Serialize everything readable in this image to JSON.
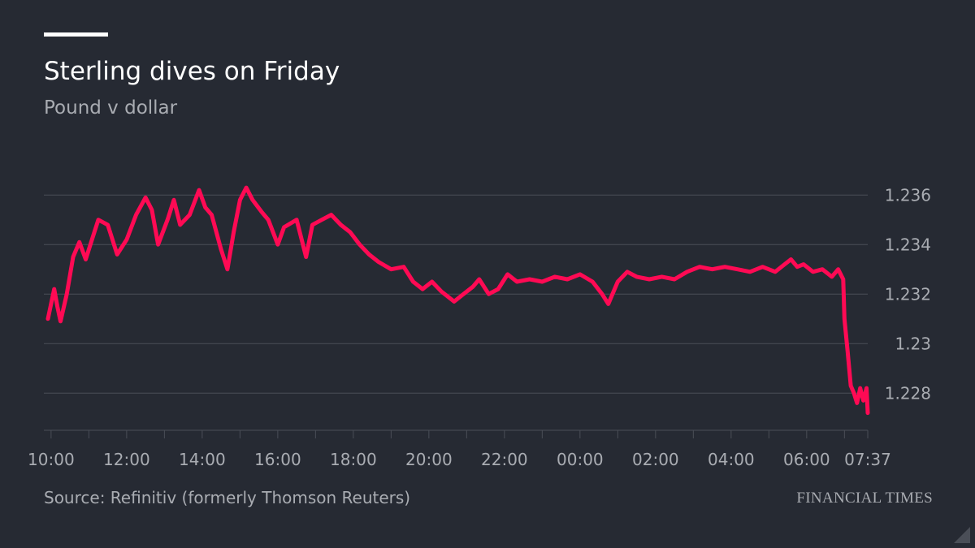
{
  "header": {
    "title": "Sterling dives on Friday",
    "subtitle": "Pound v dollar"
  },
  "footer": {
    "source": "Source: Refinitiv (formerly Thomson Reuters)",
    "brand": "FINANCIAL TIMES"
  },
  "colors": {
    "background": "#262a33",
    "line": "#ff0a54",
    "grid": "#4a4e57",
    "text_muted": "#a9acb2"
  },
  "chart_data": {
    "type": "line",
    "title": "Sterling dives on Friday",
    "subtitle": "Pound v dollar",
    "ylim": [
      1.2265,
      1.2365
    ],
    "y_ticks": [
      {
        "value": 1.236,
        "label": "1.236"
      },
      {
        "value": 1.234,
        "label": "1.234"
      },
      {
        "value": 1.232,
        "label": "1.232"
      },
      {
        "value": 1.23,
        "label": "1.23"
      },
      {
        "value": 1.228,
        "label": "1.228"
      }
    ],
    "x_ticks": [
      {
        "label": "10:00",
        "value": "10:00"
      },
      {
        "label": "12:00",
        "value": "12:00"
      },
      {
        "label": "14:00",
        "value": "14:00"
      },
      {
        "label": "16:00",
        "value": "16:00"
      },
      {
        "label": "18:00",
        "value": "18:00"
      },
      {
        "label": "20:00",
        "value": "20:00"
      },
      {
        "label": "22:00",
        "value": "22:00"
      },
      {
        "label": "00:00",
        "value": "00:00"
      },
      {
        "label": "02:00",
        "value": "02:00"
      },
      {
        "label": "04:00",
        "value": "04:00"
      },
      {
        "label": "06:00",
        "value": "06:00"
      },
      {
        "label": "07:37",
        "value": "07:37"
      }
    ],
    "grid": true,
    "series": [
      {
        "points": [
          [
            "09:55",
            1.231
          ],
          [
            "10:05",
            1.2322
          ],
          [
            "10:10",
            1.2315
          ],
          [
            "10:15",
            1.2309
          ],
          [
            "10:25",
            1.232
          ],
          [
            "10:35",
            1.2335
          ],
          [
            "10:45",
            1.2341
          ],
          [
            "10:55",
            1.2334
          ],
          [
            "11:05",
            1.2342
          ],
          [
            "11:15",
            1.235
          ],
          [
            "11:30",
            1.2348
          ],
          [
            "11:45",
            1.2336
          ],
          [
            "12:00",
            1.2342
          ],
          [
            "12:15",
            1.2352
          ],
          [
            "12:30",
            1.2359
          ],
          [
            "12:40",
            1.2354
          ],
          [
            "12:50",
            1.234
          ],
          [
            "13:05",
            1.235
          ],
          [
            "13:15",
            1.2358
          ],
          [
            "13:25",
            1.2348
          ],
          [
            "13:40",
            1.2352
          ],
          [
            "13:55",
            1.2362
          ],
          [
            "14:05",
            1.2355
          ],
          [
            "14:15",
            1.2352
          ],
          [
            "14:30",
            1.2338
          ],
          [
            "14:40",
            1.233
          ],
          [
            "14:50",
            1.2345
          ],
          [
            "15:00",
            1.2358
          ],
          [
            "15:10",
            1.2363
          ],
          [
            "15:20",
            1.2358
          ],
          [
            "15:35",
            1.2353
          ],
          [
            "15:45",
            1.235
          ],
          [
            "16:00",
            1.234
          ],
          [
            "16:10",
            1.2347
          ],
          [
            "16:30",
            1.235
          ],
          [
            "16:45",
            1.2335
          ],
          [
            "16:55",
            1.2348
          ],
          [
            "17:10",
            1.235
          ],
          [
            "17:25",
            1.2352
          ],
          [
            "17:40",
            1.2348
          ],
          [
            "17:55",
            1.2345
          ],
          [
            "18:10",
            1.234
          ],
          [
            "18:25",
            1.2336
          ],
          [
            "18:40",
            1.2333
          ],
          [
            "19:00",
            1.233
          ],
          [
            "19:20",
            1.2331
          ],
          [
            "19:35",
            1.2325
          ],
          [
            "19:50",
            1.2322
          ],
          [
            "20:05",
            1.2325
          ],
          [
            "20:20",
            1.2321
          ],
          [
            "20:40",
            1.2317
          ],
          [
            "20:55",
            1.232
          ],
          [
            "21:10",
            1.2323
          ],
          [
            "21:20",
            1.2326
          ],
          [
            "21:35",
            1.232
          ],
          [
            "21:50",
            1.2322
          ],
          [
            "22:05",
            1.2328
          ],
          [
            "22:20",
            1.2325
          ],
          [
            "22:40",
            1.2326
          ],
          [
            "23:00",
            1.2325
          ],
          [
            "23:20",
            1.2327
          ],
          [
            "23:40",
            1.2326
          ],
          [
            "00:00",
            1.2328
          ],
          [
            "00:20",
            1.2325
          ],
          [
            "00:35",
            1.232
          ],
          [
            "00:45",
            1.2316
          ],
          [
            "01:00",
            1.2325
          ],
          [
            "01:15",
            1.2329
          ],
          [
            "01:30",
            1.2327
          ],
          [
            "01:50",
            1.2326
          ],
          [
            "02:10",
            1.2327
          ],
          [
            "02:30",
            1.2326
          ],
          [
            "02:50",
            1.2329
          ],
          [
            "03:10",
            1.2331
          ],
          [
            "03:30",
            1.233
          ],
          [
            "03:50",
            1.2331
          ],
          [
            "04:10",
            1.233
          ],
          [
            "04:30",
            1.2329
          ],
          [
            "04:50",
            1.2331
          ],
          [
            "05:10",
            1.2329
          ],
          [
            "05:25",
            1.2332
          ],
          [
            "05:35",
            1.2334
          ],
          [
            "05:45",
            1.2331
          ],
          [
            "05:55",
            1.2332
          ],
          [
            "06:10",
            1.2329
          ],
          [
            "06:25",
            1.233
          ],
          [
            "06:40",
            1.2327
          ],
          [
            "06:50",
            1.233
          ],
          [
            "06:58",
            1.2326
          ],
          [
            "07:00",
            1.231
          ],
          [
            "07:05",
            1.2297
          ],
          [
            "07:10",
            1.2283
          ],
          [
            "07:15",
            1.228
          ],
          [
            "07:20",
            1.2276
          ],
          [
            "07:25",
            1.2282
          ],
          [
            "07:30",
            1.2277
          ],
          [
            "07:35",
            1.2282
          ],
          [
            "07:37",
            1.2272
          ]
        ]
      }
    ]
  }
}
